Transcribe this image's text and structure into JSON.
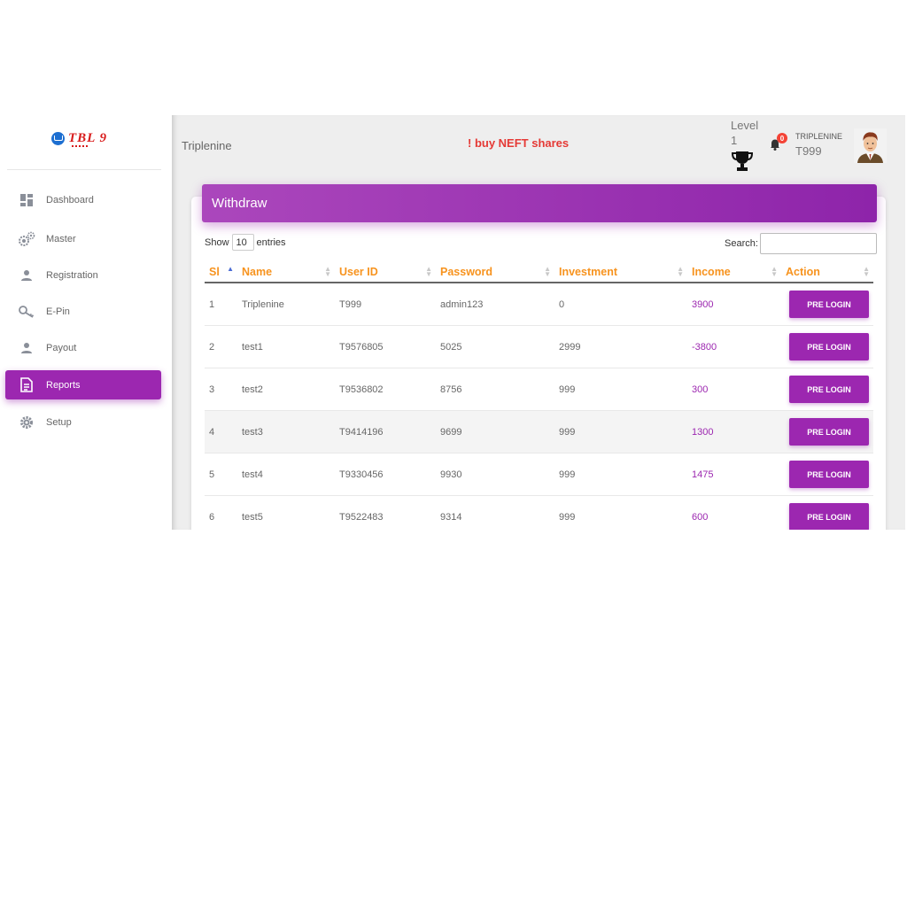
{
  "sidebar": {
    "logo_text": "TBL 9",
    "items": [
      {
        "label": "Dashboard",
        "icon": "dashboard-icon"
      },
      {
        "label": "Master",
        "icon": "gears-icon"
      },
      {
        "label": "Registration",
        "icon": "person-icon"
      },
      {
        "label": "E-Pin",
        "icon": "key-icon"
      },
      {
        "label": "Payout",
        "icon": "person-icon"
      },
      {
        "label": "Reports",
        "icon": "document-icon",
        "active": true
      },
      {
        "label": "Setup",
        "icon": "gear-icon"
      }
    ]
  },
  "header": {
    "brand": "Triplenine",
    "alert": "! buy NEFT shares",
    "level_label": "Level",
    "level_value": "1",
    "notifications": "0",
    "user_name": "TRIPLENINE",
    "user_id": "T999"
  },
  "card": {
    "title": "Withdraw",
    "show_label": "Show",
    "entries_value": "10",
    "entries_label": "entries",
    "search_label": "Search:"
  },
  "table": {
    "columns": [
      "Sl",
      "Name",
      "User ID",
      "Password",
      "Investment",
      "Income",
      "Action"
    ],
    "rows": [
      {
        "sl": "1",
        "name": "Triplenine",
        "user_id": "T999",
        "password": "admin123",
        "investment": "0",
        "income": "3900",
        "action": "PRE LOGIN"
      },
      {
        "sl": "2",
        "name": "test1",
        "user_id": "T9576805",
        "password": "5025",
        "investment": "2999",
        "income": "-3800",
        "action": "PRE LOGIN"
      },
      {
        "sl": "3",
        "name": "test2",
        "user_id": "T9536802",
        "password": "8756",
        "investment": "999",
        "income": "300",
        "action": "PRE LOGIN"
      },
      {
        "sl": "4",
        "name": "test3",
        "user_id": "T9414196",
        "password": "9699",
        "investment": "999",
        "income": "1300",
        "action": "PRE LOGIN"
      },
      {
        "sl": "5",
        "name": "test4",
        "user_id": "T9330456",
        "password": "9930",
        "investment": "999",
        "income": "1475",
        "action": "PRE LOGIN"
      },
      {
        "sl": "6",
        "name": "test5",
        "user_id": "T9522483",
        "password": "9314",
        "investment": "999",
        "income": "600",
        "action": "PRE LOGIN"
      }
    ]
  },
  "colors": {
    "accent": "#9c27b0",
    "column_header": "#f7931e",
    "alert": "#e53935"
  }
}
